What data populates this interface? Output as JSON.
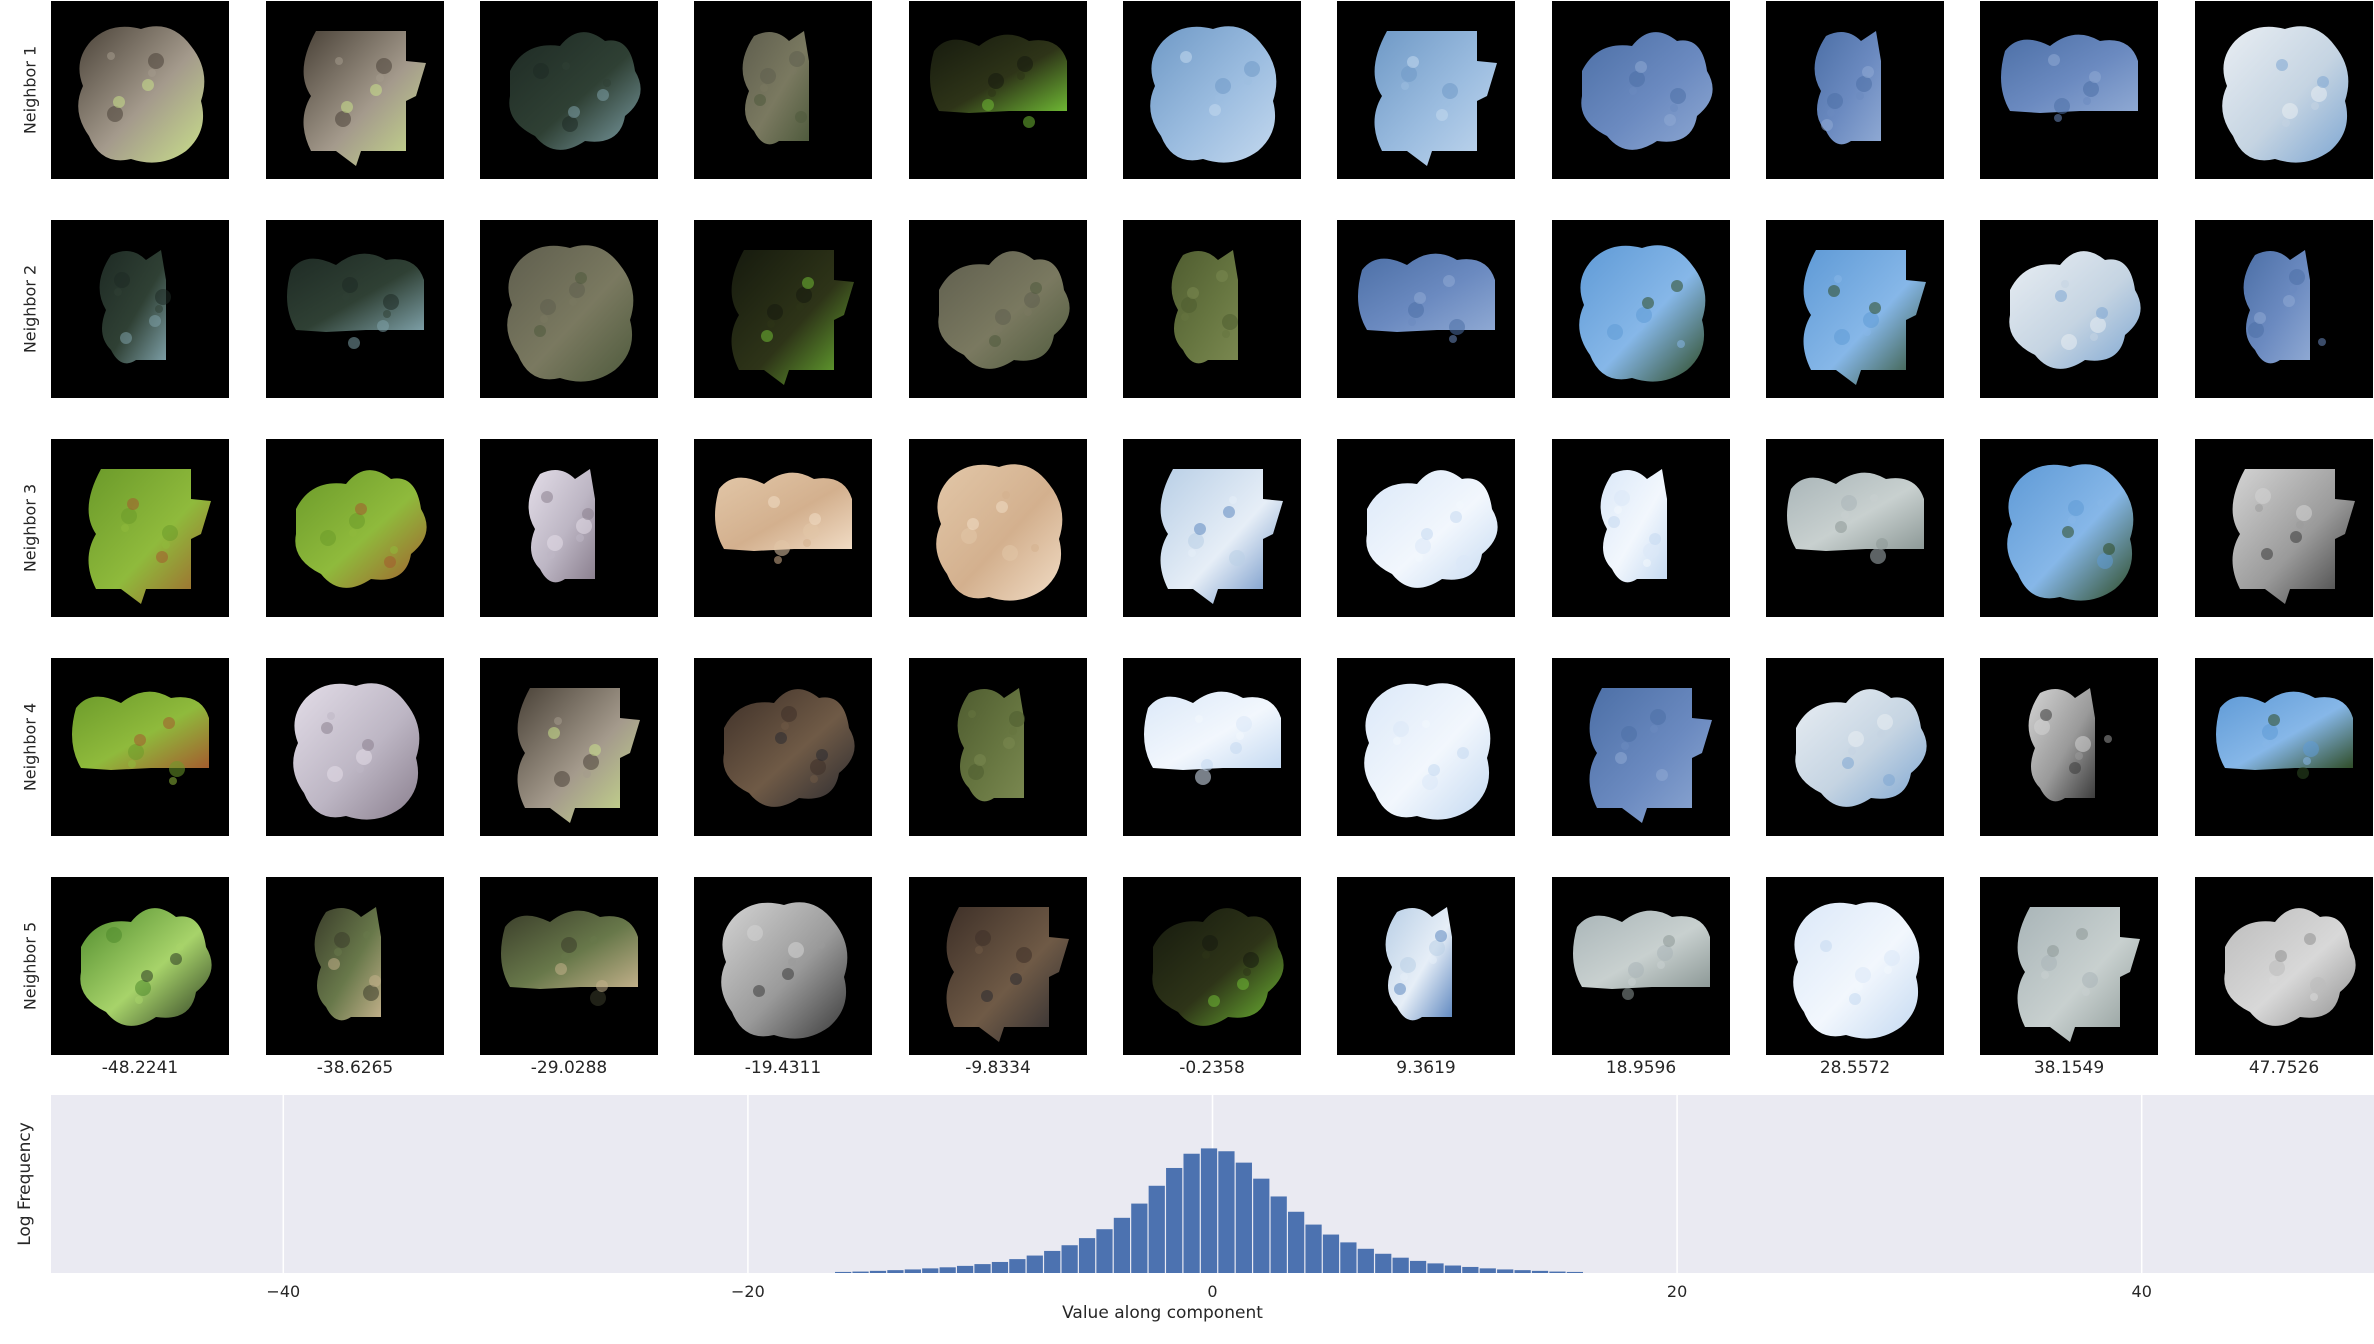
{
  "chart_data": [
    {
      "type": "image-grid",
      "rows": [
        "Neighbor 1",
        "Neighbor 2",
        "Neighbor 3",
        "Neighbor 4",
        "Neighbor 5"
      ],
      "columns": [
        "-48.2241",
        "-38.6265",
        "-29.0288",
        "-19.4311",
        "-9.8334",
        "-0.2358",
        "9.3619",
        "18.9596",
        "28.5572",
        "38.1549",
        "47.7526"
      ],
      "tiles": [
        [
          "bark",
          "bark",
          "leaf-dark",
          "moss",
          "leaf-stripe",
          "sky-light",
          "sky-light",
          "sky-blue",
          "sky-blue",
          "sky-blue",
          "cloud"
        ],
        [
          "leaf-dark",
          "leaf-dark",
          "moss",
          "leaf-stripe",
          "moss",
          "olive",
          "sky-blue",
          "sky-bright",
          "sky-bright",
          "cloud",
          "sky-blue"
        ],
        [
          "leaf-green",
          "leaf-green",
          "white-flower",
          "skin",
          "skin",
          "sky-clouds",
          "sky-white",
          "sky-white",
          "fog-gray",
          "sky-bright",
          "gray-shade"
        ],
        [
          "leaf-green",
          "white-flower",
          "bark",
          "brown",
          "olive",
          "sky-white",
          "sky-white",
          "sky-blue",
          "cloud",
          "gray-shade",
          "sky-bright"
        ],
        [
          "leaf-mix",
          "dark-green",
          "dark-green",
          "gray-shade",
          "brown",
          "leaf-stripe",
          "sky-clouds",
          "fog-gray",
          "sky-white",
          "fog-gray",
          "rock"
        ]
      ],
      "palette": {
        "bark": [
          "#4a4238",
          "#a49a8c",
          "#c9e08a"
        ],
        "leaf-dark": [
          "#1e2a24",
          "#2f4034",
          "#7ea0a8"
        ],
        "moss": [
          "#5f5e4e",
          "#7a7960",
          "#4e5a3c"
        ],
        "leaf-stripe": [
          "#161a0e",
          "#2e3418",
          "#6fba34"
        ],
        "sky-light": [
          "#6f99c6",
          "#9cbde0",
          "#c3d8ee"
        ],
        "sky-blue": [
          "#4c6fa6",
          "#6b8ac0",
          "#8fa9d3"
        ],
        "cloud": [
          "#e9eef3",
          "#c5d4e2",
          "#7da6d2"
        ],
        "olive": [
          "#4f5c30",
          "#667540",
          "#7a8850"
        ],
        "sky-bright": [
          "#5f9ad6",
          "#86b7e8",
          "#2d4a23"
        ],
        "leaf-green": [
          "#6b9a2a",
          "#8fba3c",
          "#a45a2e"
        ],
        "white-flower": [
          "#e3dde8",
          "#bdb6c4",
          "#8a7f8e"
        ],
        "skin": [
          "#e2c7a8",
          "#d3b08e",
          "#f1dcc5"
        ],
        "sky-clouds": [
          "#b9cfe6",
          "#e6eef7",
          "#5f88c0"
        ],
        "sky-white": [
          "#dbe8f8",
          "#f2f7fd",
          "#c4d9f1"
        ],
        "fog-gray": [
          "#a9b5b8",
          "#c8d0cf",
          "#8c9896"
        ],
        "gray-shade": [
          "#d4d4d4",
          "#9a9a9a",
          "#3a3a3a"
        ],
        "brown": [
          "#3e3028",
          "#6f5a46",
          "#2a2a30"
        ],
        "leaf-mix": [
          "#4e8a2c",
          "#a7d36a",
          "#2c3a22"
        ],
        "dark-green": [
          "#3a3d2a",
          "#68784a",
          "#c2b08a"
        ],
        "rock": [
          "#bcbcbc",
          "#d8d8d8",
          "#8f8f8f"
        ]
      }
    },
    {
      "type": "bar",
      "title": "",
      "xlabel": "Value along component",
      "ylabel": "Log Frequency",
      "xlim": [
        -50,
        50
      ],
      "ylim": [
        0,
        5
      ],
      "xticks": [
        -40,
        -20,
        0,
        20,
        40
      ],
      "xtick_labels": [
        "−40",
        "−20",
        "0",
        "20",
        "40"
      ],
      "grid": true,
      "bin_width": 0.75,
      "bar_color": "#4c72b0",
      "background": "#eaeaf2",
      "bins": [
        {
          "x": -15.9,
          "y": 0.03
        },
        {
          "x": -15.15,
          "y": 0.04
        },
        {
          "x": -14.4,
          "y": 0.06
        },
        {
          "x": -13.65,
          "y": 0.08
        },
        {
          "x": -12.9,
          "y": 0.1
        },
        {
          "x": -12.15,
          "y": 0.13
        },
        {
          "x": -11.4,
          "y": 0.16
        },
        {
          "x": -10.65,
          "y": 0.2
        },
        {
          "x": -9.9,
          "y": 0.25
        },
        {
          "x": -9.15,
          "y": 0.31
        },
        {
          "x": -8.4,
          "y": 0.39
        },
        {
          "x": -7.65,
          "y": 0.49
        },
        {
          "x": -6.9,
          "y": 0.62
        },
        {
          "x": -6.15,
          "y": 0.78
        },
        {
          "x": -5.4,
          "y": 0.98
        },
        {
          "x": -4.65,
          "y": 1.23
        },
        {
          "x": -3.9,
          "y": 1.55
        },
        {
          "x": -3.15,
          "y": 1.95
        },
        {
          "x": -2.4,
          "y": 2.45
        },
        {
          "x": -1.65,
          "y": 2.95
        },
        {
          "x": -0.9,
          "y": 3.35
        },
        {
          "x": -0.15,
          "y": 3.5
        },
        {
          "x": 0.6,
          "y": 3.42
        },
        {
          "x": 1.35,
          "y": 3.1
        },
        {
          "x": 2.1,
          "y": 2.65
        },
        {
          "x": 2.85,
          "y": 2.15
        },
        {
          "x": 3.6,
          "y": 1.72
        },
        {
          "x": 4.35,
          "y": 1.36
        },
        {
          "x": 5.1,
          "y": 1.08
        },
        {
          "x": 5.85,
          "y": 0.86
        },
        {
          "x": 6.6,
          "y": 0.68
        },
        {
          "x": 7.35,
          "y": 0.54
        },
        {
          "x": 8.1,
          "y": 0.43
        },
        {
          "x": 8.85,
          "y": 0.34
        },
        {
          "x": 9.6,
          "y": 0.27
        },
        {
          "x": 10.35,
          "y": 0.21
        },
        {
          "x": 11.1,
          "y": 0.17
        },
        {
          "x": 11.85,
          "y": 0.13
        },
        {
          "x": 12.6,
          "y": 0.1
        },
        {
          "x": 13.35,
          "y": 0.08
        },
        {
          "x": 14.1,
          "y": 0.06
        },
        {
          "x": 14.85,
          "y": 0.04
        },
        {
          "x": 15.6,
          "y": 0.03
        }
      ]
    }
  ]
}
